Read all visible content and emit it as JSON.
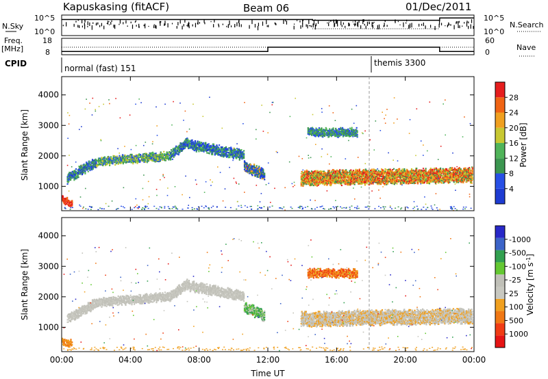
{
  "header": {
    "station": "Kapuskasing (fitACF)",
    "beam": "Beam 06",
    "date": "01/Dec/2011"
  },
  "panels": {
    "nsky": {
      "label": "N.Sky",
      "tick_top": "10^5",
      "tick_bottom": "10^0",
      "right_label": "N.Search"
    },
    "freq": {
      "label_line1": "Freq.",
      "label_line2": "[MHz]",
      "tick_top": "18",
      "tick_bottom": "8",
      "right_tick_top": "60",
      "right_tick_bottom": "0",
      "right_label": "Nave"
    },
    "cpid": {
      "label": "CPID",
      "modes": [
        "normal (fast) 151",
        "themis 3300"
      ]
    }
  },
  "colors": {
    "power": [
      "#1e3cd2",
      "#2850e6",
      "#3c9650",
      "#50b45a",
      "#c8c832",
      "#f0a020",
      "#f06414",
      "#e61e1e"
    ],
    "velocity": [
      "#2828c8",
      "#3c64c8",
      "#32a050",
      "#64c832",
      "#c0c0b8",
      "#c8c8c0",
      "#f0a020",
      "#f07814",
      "#f03c14",
      "#e61414"
    ],
    "line": "#000000"
  },
  "chart_data": [
    {
      "type": "heatmap",
      "name": "power",
      "xlabel": "",
      "ylabel": "Slant Range [km]",
      "x_ticks": [
        "00:00",
        "04:00",
        "08:00",
        "12:00",
        "16:00",
        "20:00",
        "00:00"
      ],
      "y_ticks": [
        "1000",
        "2000",
        "3000",
        "4000"
      ],
      "ylim": [
        200,
        4600
      ],
      "colorbar_label": "Power [dB]",
      "colorbar_ticks": [
        "4",
        "8",
        "12",
        "16",
        "20",
        "24",
        "28"
      ],
      "colorbar_range": [
        0,
        32
      ]
    },
    {
      "type": "heatmap",
      "name": "velocity",
      "xlabel": "Time UT",
      "ylabel": "Slant Range [km]",
      "x_ticks": [
        "00:00",
        "04:00",
        "08:00",
        "12:00",
        "16:00",
        "20:00",
        "00:00"
      ],
      "y_ticks": [
        "1000",
        "2000",
        "3000",
        "4000"
      ],
      "ylim": [
        200,
        4600
      ],
      "colorbar_label": "Velocity [m s^-1]",
      "colorbar_ticks": [
        "1000",
        "500",
        "100",
        "25",
        "-25",
        "-100",
        "-500",
        "-1000"
      ]
    },
    {
      "type": "line",
      "name": "frequency",
      "x_hours": [
        0,
        12,
        12,
        22,
        22,
        24
      ],
      "freq_mhz": [
        10,
        10,
        12.6,
        12.6,
        10,
        10
      ],
      "ylim": [
        8,
        18
      ]
    },
    {
      "type": "line",
      "name": "nsky",
      "x_hours": [
        0,
        14.6,
        14.6,
        22,
        22,
        24
      ],
      "log_value": [
        4.2,
        4.2,
        4.0,
        4.0,
        4.6,
        4.6
      ],
      "ylim": [
        0,
        5
      ]
    }
  ]
}
